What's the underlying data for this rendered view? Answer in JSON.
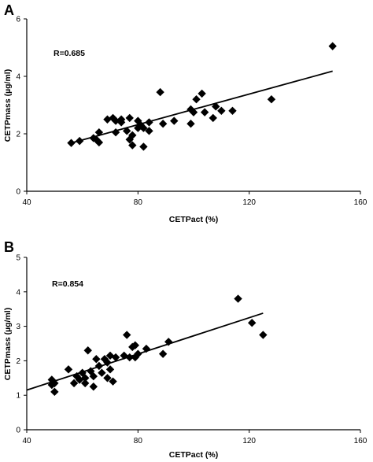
{
  "chart_data": [
    {
      "panel": "A",
      "type": "scatter",
      "annotation": "R=0.685",
      "xlabel": "CETPact (%)",
      "ylabel": "CETPmass (µg/ml)",
      "xlim": [
        40,
        160
      ],
      "ylim": [
        0,
        6
      ],
      "xticks": [
        "40",
        "80",
        "120",
        "160"
      ],
      "yticks": [
        "0",
        "2",
        "4",
        "6"
      ],
      "grid": false,
      "legend": "none",
      "marker": "diamond",
      "color": "#000000",
      "points": [
        [
          56,
          1.68
        ],
        [
          59,
          1.75
        ],
        [
          64,
          1.85
        ],
        [
          65,
          1.8
        ],
        [
          66,
          2.05
        ],
        [
          66,
          1.7
        ],
        [
          69,
          2.5
        ],
        [
          71,
          2.55
        ],
        [
          72,
          2.45
        ],
        [
          72,
          2.05
        ],
        [
          74,
          2.5
        ],
        [
          74,
          2.4
        ],
        [
          76,
          2.1
        ],
        [
          77,
          2.55
        ],
        [
          77,
          1.8
        ],
        [
          78,
          1.6
        ],
        [
          78,
          1.95
        ],
        [
          80,
          2.45
        ],
        [
          80,
          2.2
        ],
        [
          81,
          2.3
        ],
        [
          82,
          2.2
        ],
        [
          82,
          1.55
        ],
        [
          84,
          2.1
        ],
        [
          84,
          2.4
        ],
        [
          88,
          3.45
        ],
        [
          89,
          2.35
        ],
        [
          93,
          2.45
        ],
        [
          99,
          2.85
        ],
        [
          99,
          2.35
        ],
        [
          100,
          2.75
        ],
        [
          101,
          3.2
        ],
        [
          103,
          3.4
        ],
        [
          104,
          2.75
        ],
        [
          107,
          2.55
        ],
        [
          108,
          2.95
        ],
        [
          110,
          2.8
        ],
        [
          114,
          2.8
        ],
        [
          128,
          3.2
        ],
        [
          150,
          5.05
        ]
      ],
      "trendline": {
        "x": [
          56,
          150
        ],
        "y": [
          1.68,
          4.18
        ]
      }
    },
    {
      "panel": "B",
      "type": "scatter",
      "annotation": "R=0.854",
      "xlabel": "CETPact (%)",
      "ylabel": "CETPmass (µg/ml)",
      "xlim": [
        40,
        160
      ],
      "ylim": [
        0,
        5
      ],
      "xticks": [
        "40",
        "80",
        "120",
        "160"
      ],
      "yticks": [
        "0",
        "1",
        "2",
        "3",
        "4",
        "5"
      ],
      "grid": false,
      "legend": "none",
      "marker": "diamond",
      "color": "#000000",
      "points": [
        [
          49,
          1.45
        ],
        [
          49,
          1.3
        ],
        [
          50,
          1.1
        ],
        [
          50,
          1.35
        ],
        [
          55,
          1.75
        ],
        [
          57,
          1.35
        ],
        [
          58,
          1.55
        ],
        [
          59,
          1.45
        ],
        [
          60,
          1.65
        ],
        [
          61,
          1.5
        ],
        [
          61,
          1.35
        ],
        [
          62,
          2.3
        ],
        [
          63,
          1.7
        ],
        [
          64,
          1.25
        ],
        [
          64,
          1.55
        ],
        [
          65,
          2.05
        ],
        [
          66,
          1.85
        ],
        [
          67,
          1.65
        ],
        [
          68,
          2.05
        ],
        [
          69,
          1.95
        ],
        [
          69,
          1.5
        ],
        [
          70,
          2.15
        ],
        [
          70,
          1.75
        ],
        [
          71,
          1.4
        ],
        [
          72,
          2.1
        ],
        [
          75,
          2.15
        ],
        [
          76,
          2.75
        ],
        [
          77,
          2.1
        ],
        [
          78,
          2.4
        ],
        [
          79,
          2.1
        ],
        [
          79,
          2.45
        ],
        [
          80,
          2.2
        ],
        [
          83,
          2.35
        ],
        [
          89,
          2.2
        ],
        [
          91,
          2.55
        ],
        [
          116,
          3.8
        ],
        [
          121,
          3.1
        ],
        [
          125,
          2.75
        ]
      ],
      "trendline": {
        "x": [
          40,
          125
        ],
        "y": [
          1.15,
          3.38
        ]
      }
    }
  ]
}
